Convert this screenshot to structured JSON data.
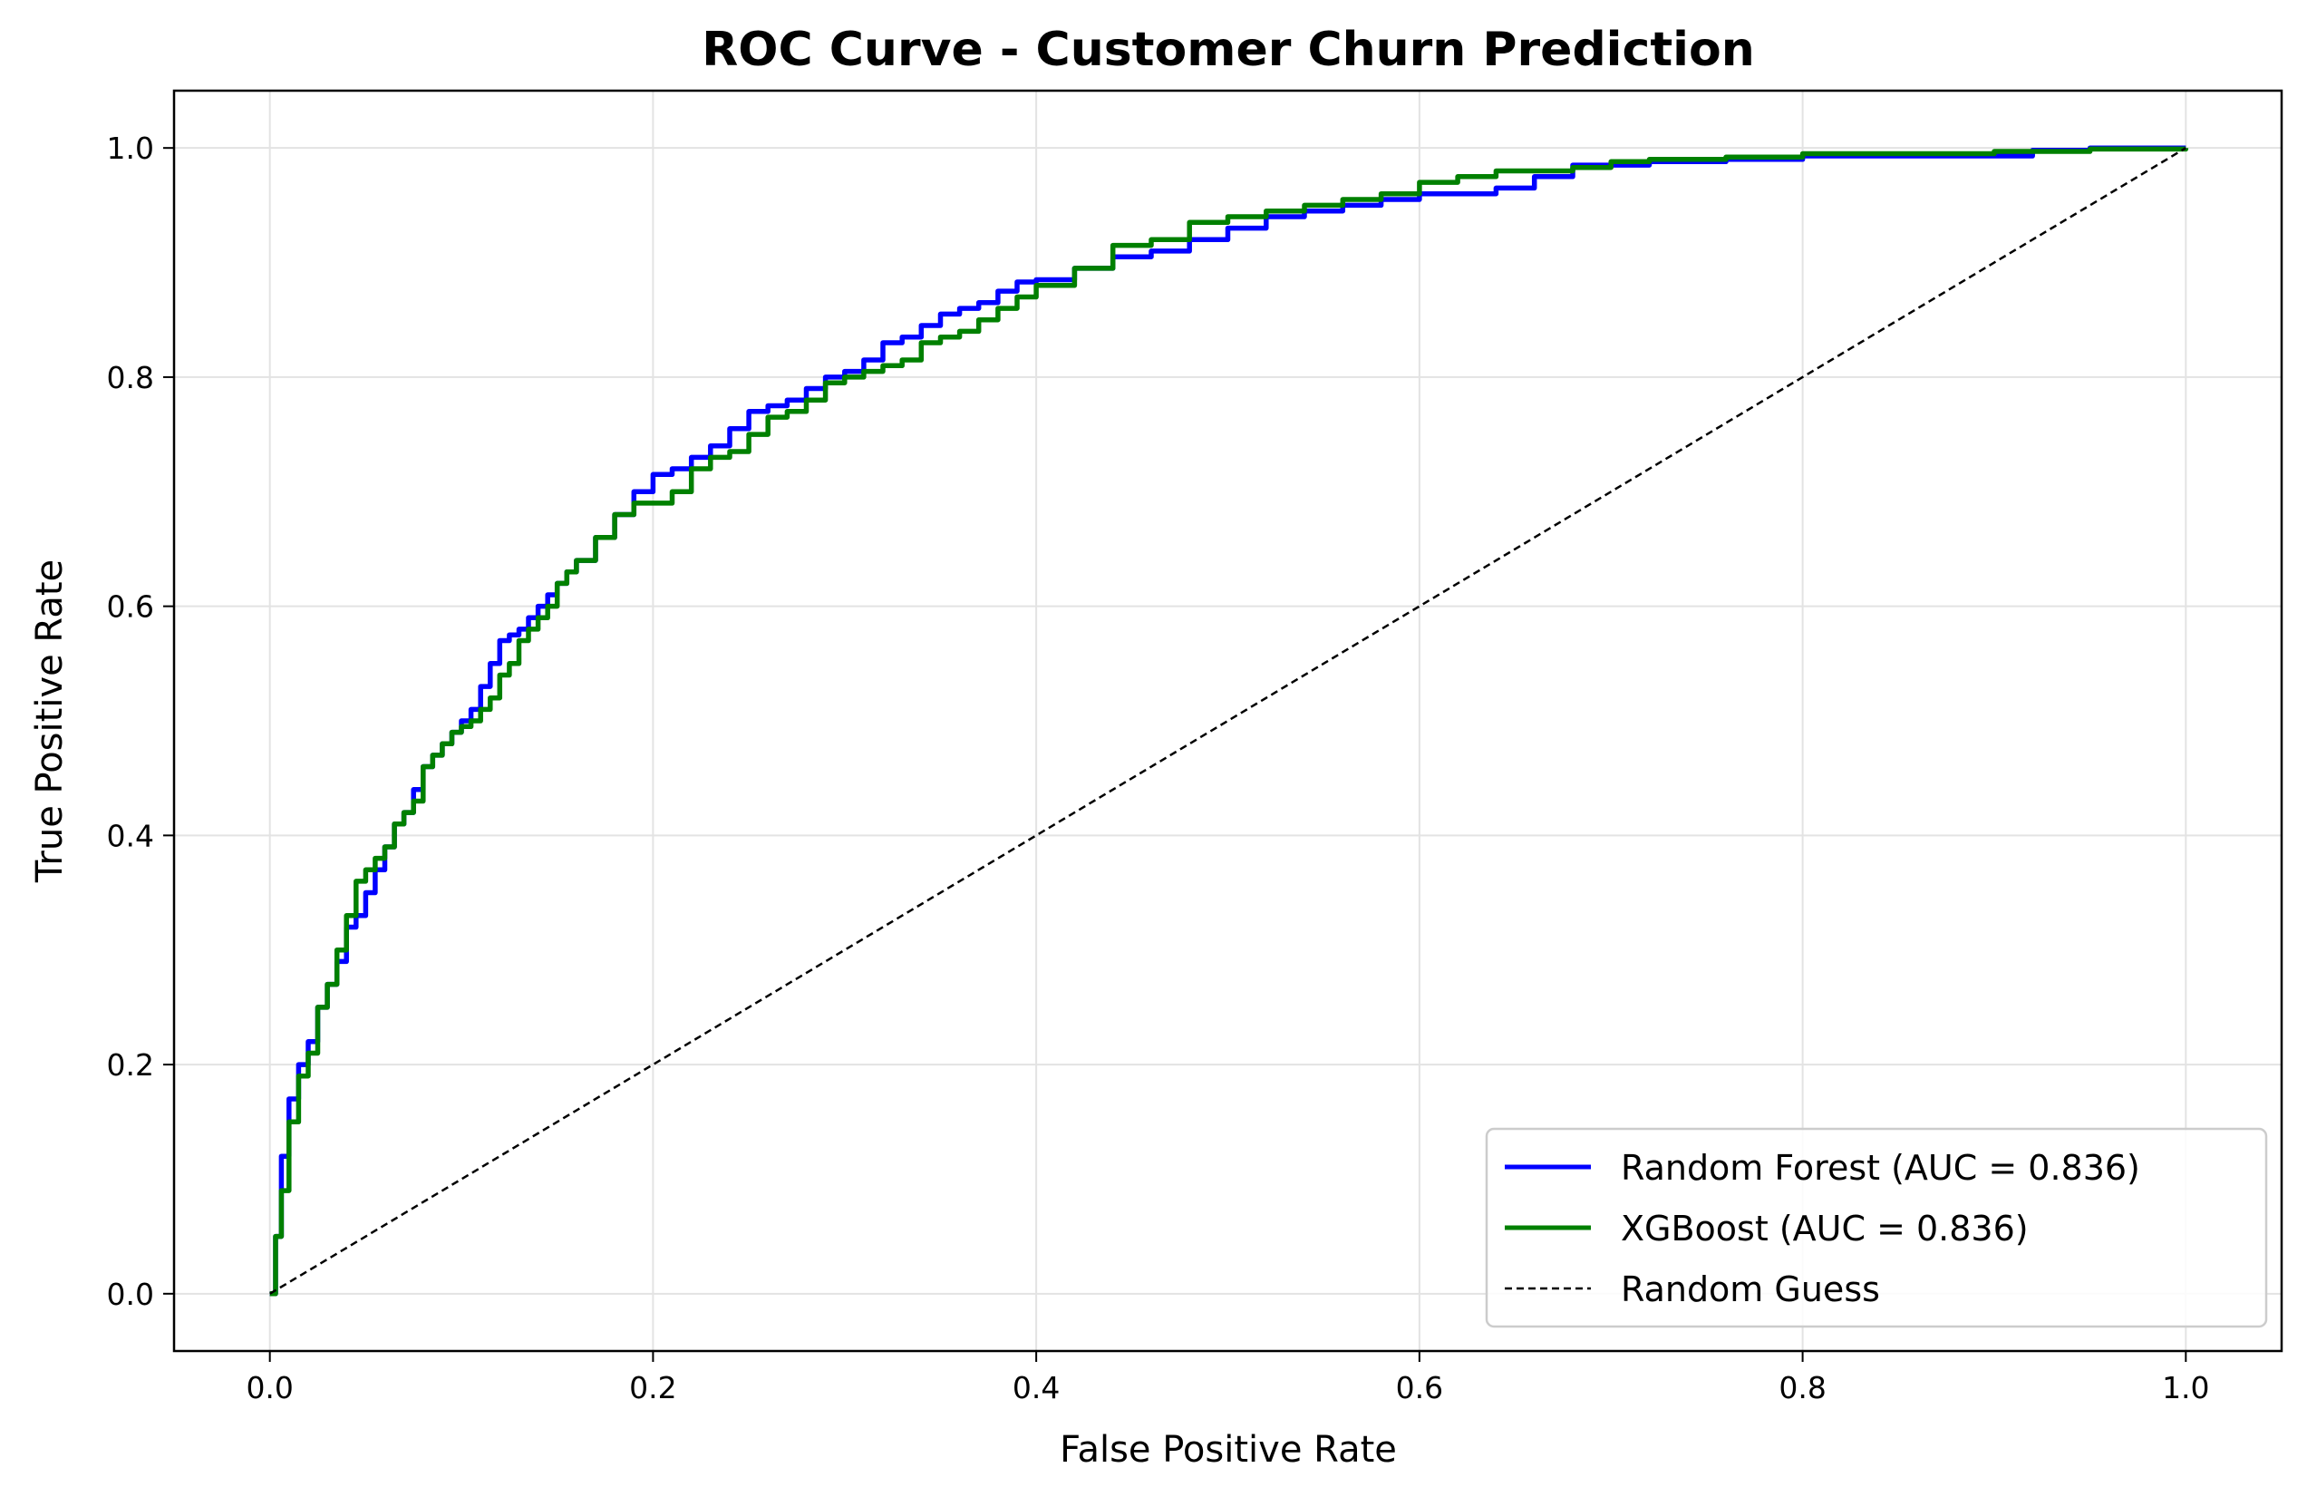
{
  "chart_data": {
    "type": "line",
    "title": "ROC Curve - Customer Churn Prediction",
    "xlabel": "False Positive Rate",
    "ylabel": "True Positive Rate",
    "xlim": [
      -0.05,
      1.05
    ],
    "ylim": [
      -0.05,
      1.05
    ],
    "xticks": [
      "0.0",
      "0.2",
      "0.4",
      "0.6",
      "0.8",
      "1.0"
    ],
    "yticks": [
      "0.0",
      "0.2",
      "0.4",
      "0.6",
      "0.8",
      "1.0"
    ],
    "grid": true,
    "legend_position": "lower-right",
    "series": [
      {
        "name": "Random Forest (AUC = 0.836)",
        "color": "#0000ff",
        "style": "solid",
        "x": [
          0.0,
          0.003,
          0.006,
          0.01,
          0.015,
          0.02,
          0.025,
          0.03,
          0.035,
          0.04,
          0.045,
          0.05,
          0.055,
          0.06,
          0.065,
          0.07,
          0.075,
          0.08,
          0.085,
          0.09,
          0.095,
          0.1,
          0.105,
          0.11,
          0.115,
          0.12,
          0.125,
          0.13,
          0.135,
          0.14,
          0.145,
          0.15,
          0.155,
          0.16,
          0.17,
          0.18,
          0.19,
          0.2,
          0.21,
          0.22,
          0.23,
          0.24,
          0.25,
          0.26,
          0.27,
          0.28,
          0.29,
          0.3,
          0.31,
          0.32,
          0.33,
          0.34,
          0.35,
          0.36,
          0.37,
          0.38,
          0.39,
          0.4,
          0.42,
          0.44,
          0.46,
          0.48,
          0.5,
          0.52,
          0.54,
          0.56,
          0.58,
          0.6,
          0.62,
          0.64,
          0.66,
          0.68,
          0.7,
          0.72,
          0.76,
          0.8,
          0.85,
          0.9,
          0.92,
          0.95,
          1.0
        ],
        "y": [
          0.0,
          0.05,
          0.12,
          0.17,
          0.2,
          0.22,
          0.25,
          0.27,
          0.29,
          0.32,
          0.33,
          0.35,
          0.37,
          0.39,
          0.41,
          0.42,
          0.44,
          0.46,
          0.47,
          0.48,
          0.49,
          0.5,
          0.51,
          0.53,
          0.55,
          0.57,
          0.575,
          0.58,
          0.59,
          0.6,
          0.61,
          0.62,
          0.63,
          0.64,
          0.66,
          0.68,
          0.7,
          0.715,
          0.72,
          0.73,
          0.74,
          0.755,
          0.77,
          0.775,
          0.78,
          0.79,
          0.8,
          0.805,
          0.815,
          0.83,
          0.835,
          0.845,
          0.855,
          0.86,
          0.865,
          0.875,
          0.883,
          0.885,
          0.895,
          0.905,
          0.91,
          0.92,
          0.93,
          0.94,
          0.945,
          0.95,
          0.955,
          0.96,
          0.96,
          0.965,
          0.975,
          0.985,
          0.985,
          0.988,
          0.99,
          0.993,
          0.993,
          0.993,
          0.998,
          1.0,
          1.0
        ]
      },
      {
        "name": "XGBoost (AUC = 0.836)",
        "color": "#008000",
        "style": "solid",
        "x": [
          0.0,
          0.003,
          0.006,
          0.01,
          0.015,
          0.02,
          0.025,
          0.03,
          0.035,
          0.04,
          0.045,
          0.05,
          0.055,
          0.06,
          0.065,
          0.07,
          0.075,
          0.08,
          0.085,
          0.09,
          0.095,
          0.1,
          0.105,
          0.11,
          0.115,
          0.12,
          0.125,
          0.13,
          0.135,
          0.14,
          0.145,
          0.15,
          0.155,
          0.16,
          0.17,
          0.18,
          0.19,
          0.2,
          0.21,
          0.22,
          0.23,
          0.24,
          0.25,
          0.26,
          0.27,
          0.28,
          0.29,
          0.3,
          0.31,
          0.32,
          0.33,
          0.34,
          0.35,
          0.36,
          0.37,
          0.38,
          0.39,
          0.4,
          0.42,
          0.44,
          0.46,
          0.48,
          0.5,
          0.52,
          0.54,
          0.56,
          0.58,
          0.6,
          0.62,
          0.64,
          0.66,
          0.68,
          0.7,
          0.72,
          0.76,
          0.8,
          0.85,
          0.9,
          0.95,
          1.0
        ],
        "y": [
          0.0,
          0.05,
          0.09,
          0.15,
          0.19,
          0.21,
          0.25,
          0.27,
          0.3,
          0.33,
          0.36,
          0.37,
          0.38,
          0.39,
          0.41,
          0.42,
          0.43,
          0.46,
          0.47,
          0.48,
          0.49,
          0.495,
          0.5,
          0.51,
          0.52,
          0.54,
          0.55,
          0.57,
          0.58,
          0.59,
          0.6,
          0.62,
          0.63,
          0.64,
          0.66,
          0.68,
          0.69,
          0.69,
          0.7,
          0.72,
          0.73,
          0.735,
          0.75,
          0.765,
          0.77,
          0.78,
          0.795,
          0.8,
          0.805,
          0.81,
          0.815,
          0.83,
          0.835,
          0.84,
          0.85,
          0.86,
          0.87,
          0.88,
          0.895,
          0.915,
          0.92,
          0.935,
          0.94,
          0.945,
          0.95,
          0.955,
          0.96,
          0.97,
          0.975,
          0.98,
          0.98,
          0.983,
          0.988,
          0.99,
          0.992,
          0.995,
          0.995,
          0.997,
          0.999,
          1.0
        ]
      },
      {
        "name": "Random Guess",
        "color": "#000000",
        "style": "dashed",
        "x": [
          0.0,
          1.0
        ],
        "y": [
          0.0,
          1.0
        ]
      }
    ]
  }
}
